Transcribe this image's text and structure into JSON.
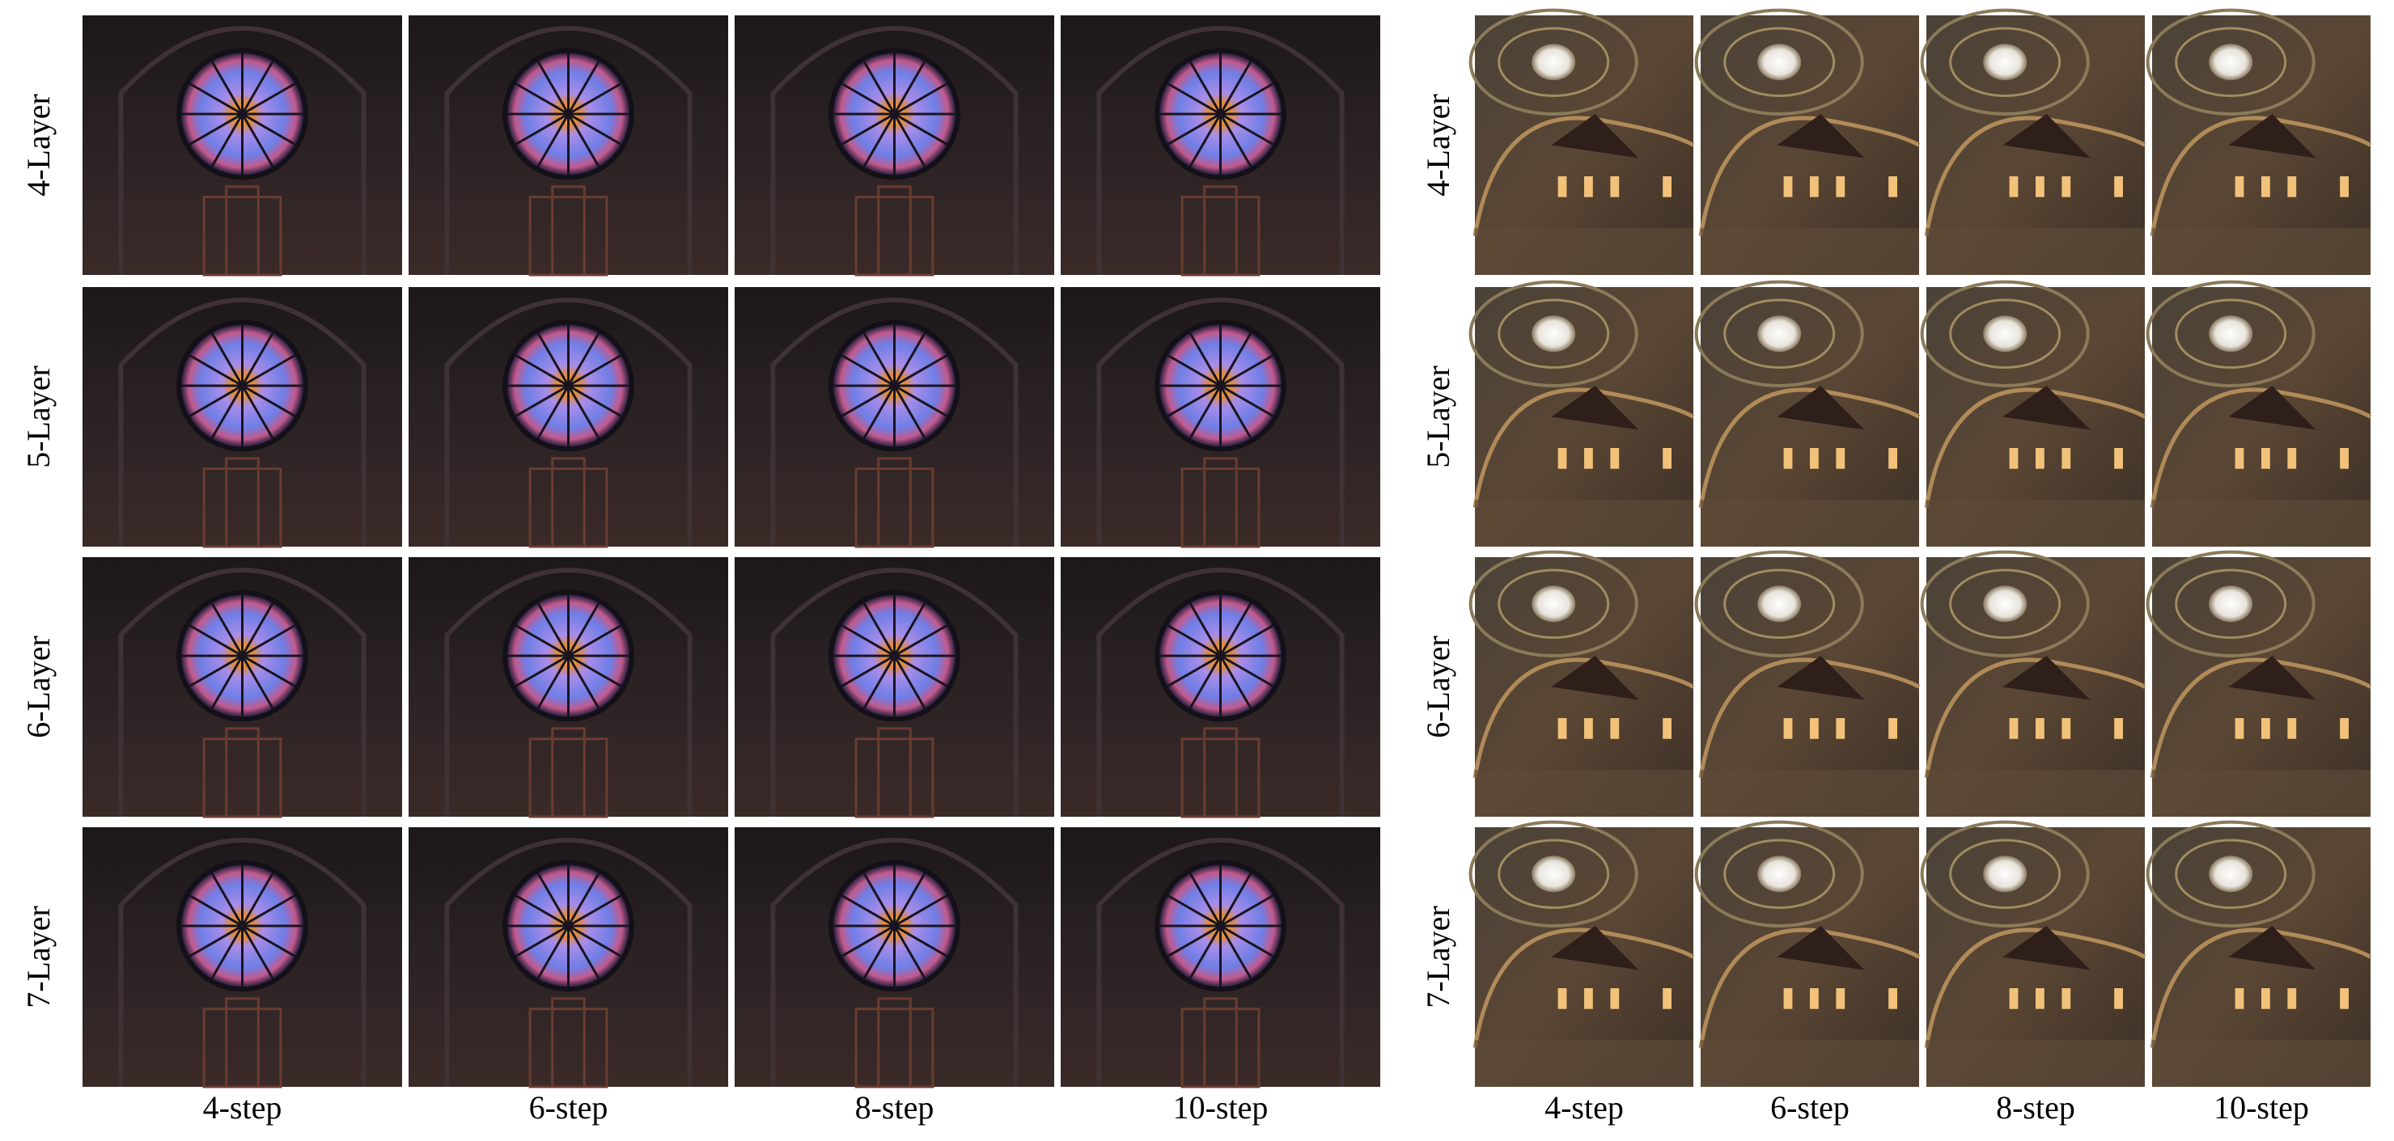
{
  "panels": [
    {
      "row_labels": [
        "4-Layer",
        "5-Layer",
        "6-Layer",
        "7-Layer"
      ],
      "column_labels": [
        "4-step",
        "6-step",
        "8-step",
        "10-step"
      ]
    },
    {
      "row_labels": [
        "4-Layer",
        "5-Layer",
        "6-Layer",
        "7-Layer"
      ],
      "column_labels": [
        "4-step",
        "6-step",
        "8-step",
        "10-step"
      ]
    }
  ]
}
